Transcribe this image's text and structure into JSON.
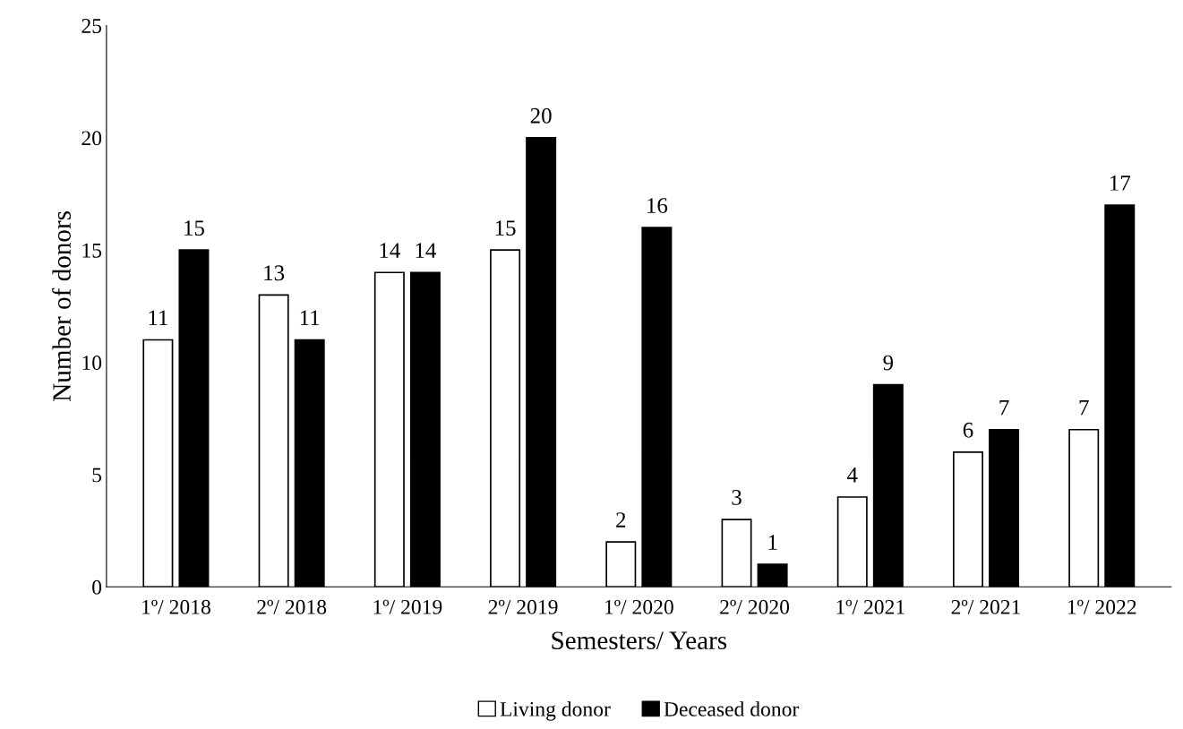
{
  "chart_data": {
    "type": "bar",
    "xlabel": "Semesters/ Years",
    "ylabel": "Number of donors",
    "categories": [
      "1º/ 2018",
      "2º/ 2018",
      "1º/ 2019",
      "2º/ 2019",
      "1º/ 2020",
      "2º/ 2020",
      "1º/ 2021",
      "2º/ 2021",
      "1º/ 2022"
    ],
    "series": [
      {
        "name": "Living donor",
        "color": "#ffffff",
        "values": [
          11,
          13,
          14,
          15,
          2,
          3,
          4,
          6,
          7
        ]
      },
      {
        "name": "Deceased donor",
        "color": "#000000",
        "values": [
          15,
          11,
          14,
          20,
          16,
          1,
          9,
          7,
          17
        ]
      }
    ],
    "ylim": [
      0,
      25
    ],
    "yticks": [
      0,
      5,
      10,
      15,
      20,
      25
    ],
    "grid": false,
    "legend": "bottom",
    "data_labels": true
  }
}
